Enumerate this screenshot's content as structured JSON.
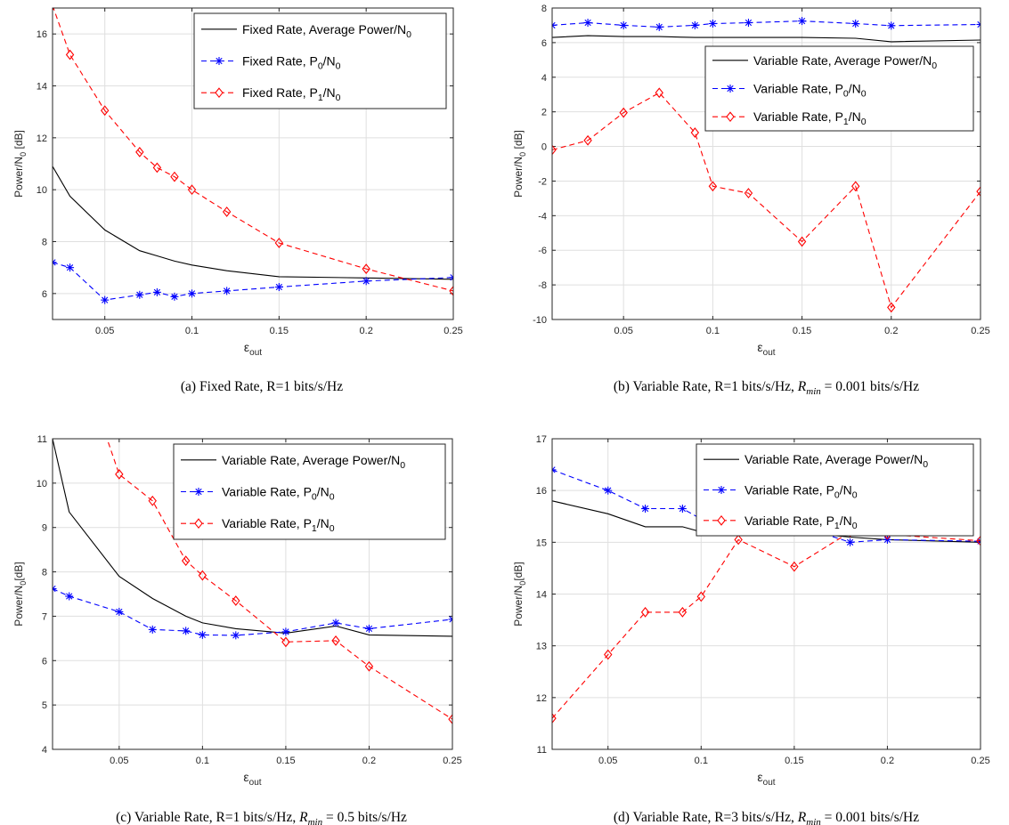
{
  "chart_data": [
    {
      "id": "a",
      "type": "line",
      "caption": "(a) Fixed Rate, R=1 bits/s/Hz",
      "xlabel": "ε_out",
      "ylabel": "Power/N_0 [dB]",
      "xlim": [
        0.02,
        0.25
      ],
      "ylim": [
        5,
        17
      ],
      "xticks": [
        0.05,
        0.1,
        0.15,
        0.2,
        0.25
      ],
      "xtick_labels": [
        "0.05",
        "0.1",
        "0.15",
        "0.2",
        "0.25"
      ],
      "yticks": [
        6,
        8,
        10,
        12,
        14,
        16
      ],
      "ytick_labels": [
        "6",
        "8",
        "10",
        "12",
        "14",
        "16"
      ],
      "grid": true,
      "legend_position": "top-right",
      "series": [
        {
          "name": "Fixed Rate, Average Power/N_0",
          "style": "solid",
          "color": "#000000",
          "marker": "none",
          "x": [
            0.02,
            0.03,
            0.05,
            0.07,
            0.08,
            0.09,
            0.1,
            0.12,
            0.15,
            0.2,
            0.25
          ],
          "y": [
            10.9,
            9.75,
            8.45,
            7.65,
            7.45,
            7.25,
            7.1,
            6.88,
            6.65,
            6.6,
            6.55
          ]
        },
        {
          "name": "Fixed Rate, P_0/N_0",
          "style": "dashed",
          "color": "#0000ff",
          "marker": "star",
          "x": [
            0.02,
            0.03,
            0.05,
            0.07,
            0.08,
            0.09,
            0.1,
            0.12,
            0.15,
            0.2,
            0.25
          ],
          "y": [
            7.2,
            7.0,
            5.75,
            5.95,
            6.05,
            5.88,
            6.0,
            6.1,
            6.25,
            6.48,
            6.62
          ]
        },
        {
          "name": "Fixed Rate, P_1/N_0",
          "style": "dashed",
          "color": "#ff0000",
          "marker": "diamond",
          "x": [
            0.02,
            0.03,
            0.05,
            0.07,
            0.08,
            0.09,
            0.1,
            0.12,
            0.15,
            0.2,
            0.25
          ],
          "y": [
            17.1,
            15.2,
            13.05,
            11.45,
            10.85,
            10.5,
            10.0,
            9.15,
            7.95,
            6.95,
            6.1
          ]
        }
      ]
    },
    {
      "id": "b",
      "type": "line",
      "caption_prefix": "(b) Variable Rate, R=1 bits/s/Hz,",
      "caption_var": "R",
      "caption_sub": "min",
      "caption_eq": " = 0.001 bits/s/Hz",
      "xlabel": "ε_out",
      "ylabel": "Power/N_0 [dB]",
      "xlim": [
        0.01,
        0.25
      ],
      "ylim": [
        -10,
        8
      ],
      "xticks": [
        0.05,
        0.1,
        0.15,
        0.2,
        0.25
      ],
      "xtick_labels": [
        "0.05",
        "0.1",
        "0.15",
        "0.2",
        "0.25"
      ],
      "yticks": [
        -10,
        -8,
        -6,
        -4,
        -2,
        0,
        2,
        4,
        6,
        8
      ],
      "ytick_labels": [
        "-10",
        "-8",
        "-6",
        "-4",
        "-2",
        "0",
        "2",
        "4",
        "6",
        "8"
      ],
      "grid": true,
      "legend_position": "top-right",
      "series": [
        {
          "name": "Variable Rate, Average Power/N_0",
          "style": "solid",
          "color": "#000000",
          "marker": "none",
          "x": [
            0.01,
            0.03,
            0.05,
            0.07,
            0.09,
            0.1,
            0.12,
            0.15,
            0.18,
            0.2,
            0.25
          ],
          "y": [
            6.3,
            6.4,
            6.35,
            6.35,
            6.3,
            6.3,
            6.3,
            6.3,
            6.25,
            6.05,
            6.15
          ]
        },
        {
          "name": "Variable Rate, P_0/N_0",
          "style": "dashed",
          "color": "#0000ff",
          "marker": "star",
          "x": [
            0.01,
            0.03,
            0.05,
            0.07,
            0.09,
            0.1,
            0.12,
            0.15,
            0.18,
            0.2,
            0.25
          ],
          "y": [
            7.0,
            7.15,
            7.0,
            6.9,
            7.0,
            7.1,
            7.15,
            7.25,
            7.1,
            6.98,
            7.05
          ]
        },
        {
          "name": "Variable Rate, P_1/N_0",
          "style": "dashed",
          "color": "#ff0000",
          "marker": "diamond",
          "x": [
            0.01,
            0.03,
            0.05,
            0.07,
            0.09,
            0.1,
            0.12,
            0.15,
            0.18,
            0.2,
            0.25
          ],
          "y": [
            -0.2,
            0.35,
            1.95,
            3.1,
            0.8,
            -2.3,
            -2.7,
            -5.5,
            -2.3,
            -9.3,
            -2.6
          ]
        }
      ]
    },
    {
      "id": "c",
      "type": "line",
      "caption_prefix": "(c) Variable Rate, R=1 bits/s/Hz,",
      "caption_var": "R",
      "caption_sub": "min",
      "caption_eq": " = 0.5 bits/s/Hz",
      "xlabel": "ε_out",
      "ylabel": "Power/N_0[dB]",
      "xlim": [
        0.01,
        0.25
      ],
      "ylim": [
        4,
        11
      ],
      "xticks": [
        0.05,
        0.1,
        0.15,
        0.2,
        0.25
      ],
      "xtick_labels": [
        "0.05",
        "0.1",
        "0.15",
        "0.2",
        "0.25"
      ],
      "yticks": [
        4,
        5,
        6,
        7,
        8,
        9,
        10,
        11
      ],
      "ytick_labels": [
        "4",
        "5",
        "6",
        "7",
        "8",
        "9",
        "10",
        "11"
      ],
      "grid": true,
      "legend_position": "top-right",
      "series": [
        {
          "name": "Variable Rate, Average Power/N_0",
          "style": "solid",
          "color": "#000000",
          "marker": "none",
          "x": [
            0.01,
            0.02,
            0.05,
            0.07,
            0.09,
            0.1,
            0.12,
            0.15,
            0.18,
            0.2,
            0.25
          ],
          "y": [
            11.0,
            9.35,
            7.9,
            7.4,
            7.0,
            6.85,
            6.72,
            6.62,
            6.78,
            6.58,
            6.55
          ]
        },
        {
          "name": "Variable Rate, P_0/N_0",
          "style": "dashed",
          "color": "#0000ff",
          "marker": "star",
          "x": [
            0.01,
            0.02,
            0.05,
            0.07,
            0.09,
            0.1,
            0.12,
            0.15,
            0.18,
            0.2,
            0.25
          ],
          "y": [
            7.62,
            7.45,
            7.1,
            6.7,
            6.67,
            6.58,
            6.57,
            6.65,
            6.85,
            6.72,
            6.93
          ]
        },
        {
          "name": "Variable Rate, P_1/N_0",
          "style": "dashed",
          "color": "#ff0000",
          "marker": "diamond",
          "x": [
            0.04,
            0.05,
            0.07,
            0.09,
            0.1,
            0.12,
            0.15,
            0.18,
            0.2,
            0.25
          ],
          "y": [
            11.3,
            10.2,
            9.6,
            8.25,
            7.92,
            7.35,
            6.42,
            6.45,
            5.87,
            4.68
          ]
        }
      ]
    },
    {
      "id": "d",
      "type": "line",
      "caption_prefix": "(d) Variable Rate, R=3 bits/s/Hz,",
      "caption_var": "R",
      "caption_sub": "min",
      "caption_eq": " = 0.001 bits/s/Hz",
      "xlabel": "ε_out",
      "ylabel": "Power/N_0[dB]",
      "xlim": [
        0.02,
        0.25
      ],
      "ylim": [
        11,
        17
      ],
      "xticks": [
        0.05,
        0.1,
        0.15,
        0.2,
        0.25
      ],
      "xtick_labels": [
        "0.05",
        "0.1",
        "0.15",
        "0.2",
        "0.25"
      ],
      "yticks": [
        11,
        12,
        13,
        14,
        15,
        16,
        17
      ],
      "ytick_labels": [
        "11",
        "12",
        "13",
        "14",
        "15",
        "16",
        "17"
      ],
      "grid": true,
      "legend_position": "top-right",
      "series": [
        {
          "name": "Variable Rate, Average Power/N_0",
          "style": "solid",
          "color": "#000000",
          "marker": "none",
          "x": [
            0.02,
            0.05,
            0.07,
            0.09,
            0.1,
            0.12,
            0.15,
            0.18,
            0.2,
            0.25
          ],
          "y": [
            15.8,
            15.55,
            15.3,
            15.3,
            15.2,
            15.25,
            15.2,
            15.1,
            15.05,
            15.0
          ]
        },
        {
          "name": "Variable Rate, P_0/N_0",
          "style": "dashed",
          "color": "#0000ff",
          "marker": "star",
          "x": [
            0.02,
            0.05,
            0.07,
            0.09,
            0.1,
            0.12,
            0.15,
            0.18,
            0.2,
            0.25
          ],
          "y": [
            16.4,
            16.0,
            15.65,
            15.65,
            15.45,
            15.3,
            15.35,
            15.0,
            15.05,
            15.02
          ]
        },
        {
          "name": "Variable Rate, P_1/N_0",
          "style": "dashed",
          "color": "#ff0000",
          "marker": "diamond",
          "x": [
            0.02,
            0.05,
            0.07,
            0.09,
            0.1,
            0.12,
            0.15,
            0.18,
            0.2,
            0.25
          ],
          "y": [
            11.6,
            12.83,
            13.65,
            13.65,
            13.95,
            15.05,
            14.53,
            15.2,
            15.15,
            15.03
          ]
        }
      ]
    }
  ]
}
